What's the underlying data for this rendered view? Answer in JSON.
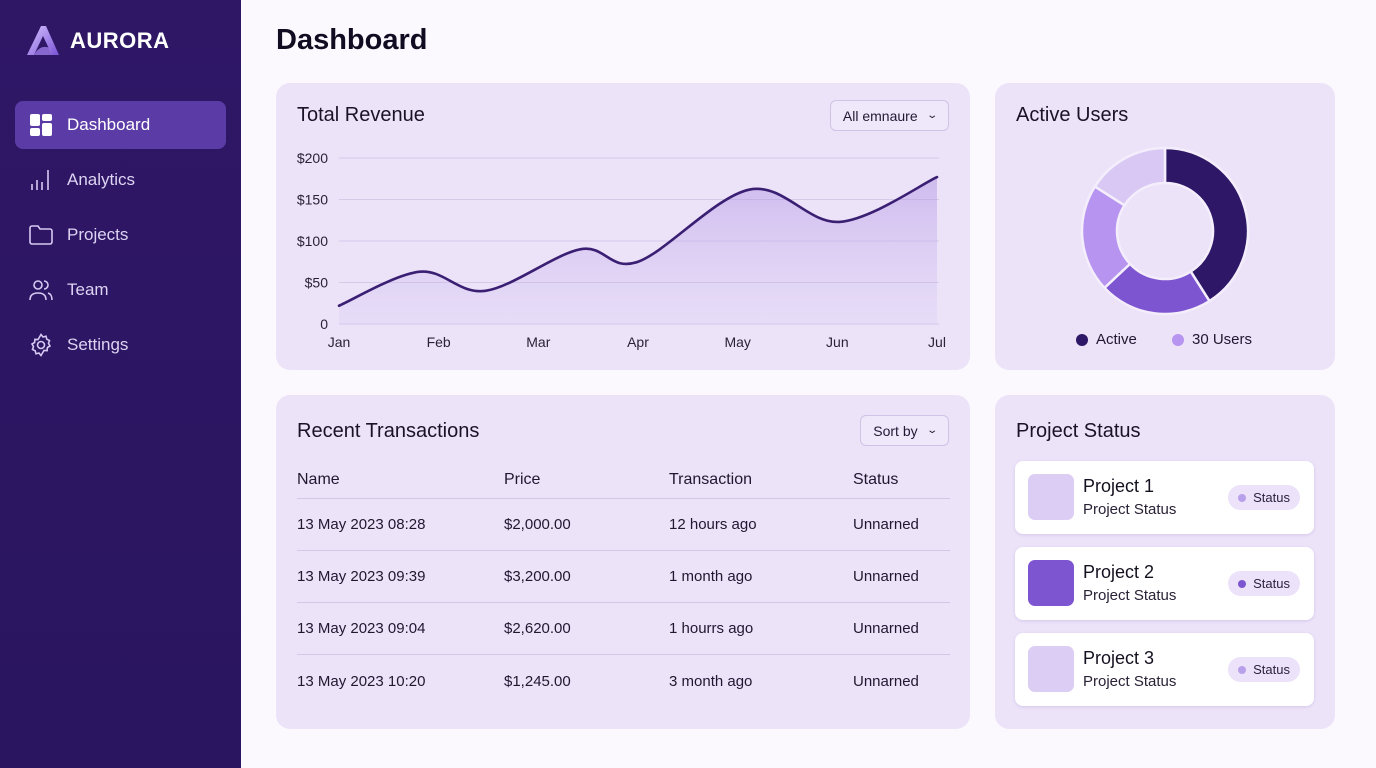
{
  "brand": {
    "name": "AURORA"
  },
  "sidebar": {
    "items": [
      {
        "label": "Dashboard",
        "icon": "dashboard-icon",
        "active": true
      },
      {
        "label": "Analytics",
        "icon": "bar-chart-icon"
      },
      {
        "label": "Projects",
        "icon": "folder-icon"
      },
      {
        "label": "Team",
        "icon": "users-icon"
      },
      {
        "label": "Settings",
        "icon": "gear-icon"
      }
    ]
  },
  "page": {
    "title": "Dashboard"
  },
  "revenue": {
    "title": "Total Revenue",
    "filter": "All emnaure"
  },
  "active_users": {
    "title": "Active Users",
    "legend": [
      {
        "label": "Active",
        "color": "#2e1766"
      },
      {
        "label": "30 Users",
        "color": "#b794f0"
      }
    ]
  },
  "transactions": {
    "title": "Recent Transactions",
    "sort_label": "Sort by",
    "columns": [
      "Name",
      "Price",
      "Transaction",
      "Status"
    ],
    "rows": [
      [
        "13 May 2023 08:28",
        "$2,000.00",
        "12 hours ago",
        "Unnarned"
      ],
      [
        "13 May 2023 09:39",
        "$3,200.00",
        "1 month ago",
        "Unnarned"
      ],
      [
        "13 May 2023 09:04",
        "$2,620.00",
        "1 hourrs ago",
        "Unnarned"
      ],
      [
        "13 May 2023 10:20",
        "$1,245.00",
        "3 month ago",
        "Unnarned"
      ]
    ]
  },
  "project_status": {
    "title": "Project Status",
    "items": [
      {
        "name": "Project 1",
        "sub": "Project Status",
        "status": "Status",
        "color": "#dccdf4",
        "dot": "#b9a0ea"
      },
      {
        "name": "Project 2",
        "sub": "Project Status",
        "status": "Status",
        "color": "#7d55d0",
        "dot": "#7d55d0"
      },
      {
        "name": "Project 3",
        "sub": "Project Status",
        "status": "Status",
        "color": "#dccdf4",
        "dot": "#b9a0ea"
      }
    ]
  },
  "chart_data": [
    {
      "type": "area",
      "title": "Total Revenue",
      "categories": [
        "Jan",
        "Feb",
        "Mar",
        "Apr",
        "May",
        "Jun",
        "Jul"
      ],
      "y_ticks": [
        "0",
        "$50",
        "$100",
        "$150",
        "$200"
      ],
      "ylim": [
        0,
        200
      ],
      "points": [
        [
          0,
          22
        ],
        [
          0.81,
          63
        ],
        [
          1.47,
          40
        ],
        [
          2.42,
          90
        ],
        [
          3.0,
          75
        ],
        [
          4.12,
          162
        ],
        [
          5.02,
          123
        ],
        [
          6.0,
          177
        ]
      ],
      "line_color": "#3a1f73"
    },
    {
      "type": "pie",
      "title": "Active Users",
      "values": [
        41,
        22,
        21,
        16
      ],
      "colors": [
        "#2e1766",
        "#7d55d0",
        "#b794f0",
        "#d8c8f3"
      ]
    }
  ]
}
